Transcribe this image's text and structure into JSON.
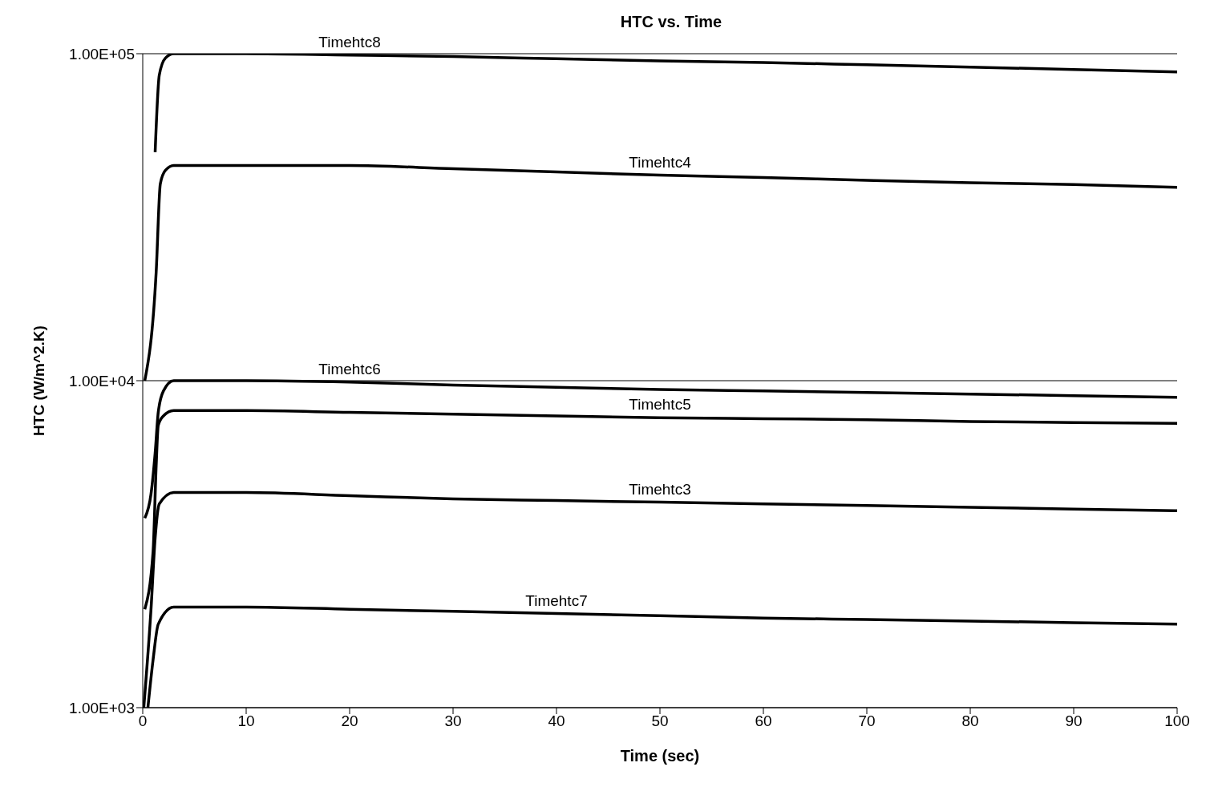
{
  "chart_data": {
    "type": "line",
    "title": "HTC vs. Time",
    "xlabel": "Time (sec)",
    "ylabel": "HTC (W/m^2.K)",
    "log": "y",
    "grid": "y",
    "marker": "none",
    "line_style": "solid",
    "xlim": [
      0,
      100
    ],
    "xticks": [
      0,
      10,
      20,
      30,
      40,
      50,
      60,
      70,
      80,
      90,
      100
    ],
    "ylim": [
      1000,
      100000
    ],
    "yticks": [
      {
        "value": 1000,
        "label": "1.00E+03"
      },
      {
        "value": 10000,
        "label": "1.00E+04"
      },
      {
        "value": 100000,
        "label": "1.00E+05"
      }
    ],
    "series": [
      {
        "name": "Timehtc8",
        "color": "#000000",
        "x": [
          1.2,
          1.6,
          2.2,
          3,
          10,
          20,
          30,
          40,
          50,
          60,
          70,
          80,
          90,
          100
        ],
        "values": [
          50000,
          86000,
          97000,
          100000,
          100000,
          99000,
          98000,
          96500,
          95000,
          94000,
          92500,
          91000,
          89500,
          88000
        ]
      },
      {
        "name": "Timehtc4",
        "color": "#000000",
        "x": [
          0.2,
          1.3,
          1.7,
          2.2,
          3,
          10,
          20,
          30,
          40,
          50,
          60,
          70,
          80,
          90,
          100
        ],
        "values": [
          10000,
          21500,
          40000,
          44000,
          45500,
          45500,
          45500,
          44500,
          43500,
          42500,
          41800,
          41000,
          40300,
          39800,
          39000
        ]
      },
      {
        "name": "Timehtc6",
        "color": "#000000",
        "x": [
          0.2,
          0.8,
          1.2,
          1.5,
          2,
          3,
          10,
          20,
          30,
          40,
          50,
          60,
          70,
          80,
          90,
          100
        ],
        "values": [
          3800,
          4500,
          6000,
          8000,
          9300,
          10000,
          10000,
          9900,
          9700,
          9550,
          9400,
          9300,
          9200,
          9100,
          9000,
          8900
        ]
      },
      {
        "name": "Timehtc5",
        "color": "#000000",
        "x": [
          0.2,
          1.0,
          1.3,
          1.5,
          2,
          3,
          10,
          20,
          30,
          40,
          50,
          60,
          70,
          80,
          90,
          100
        ],
        "values": [
          2000,
          3000,
          5500,
          7300,
          7800,
          8100,
          8100,
          8000,
          7900,
          7800,
          7700,
          7650,
          7600,
          7500,
          7450,
          7400
        ]
      },
      {
        "name": "Timehtc3",
        "color": "#000000",
        "x": [
          0.1,
          0.8,
          1.2,
          1.6,
          3,
          10,
          20,
          30,
          40,
          50,
          60,
          70,
          80,
          90,
          100
        ],
        "values": [
          1000,
          2000,
          3300,
          4200,
          4550,
          4550,
          4450,
          4350,
          4300,
          4250,
          4200,
          4150,
          4100,
          4050,
          4000
        ]
      },
      {
        "name": "Timehtc7",
        "color": "#000000",
        "x": [
          0.5,
          1.0,
          1.5,
          3,
          10,
          20,
          30,
          40,
          50,
          60,
          70,
          80,
          90,
          100
        ],
        "values": [
          1000,
          1400,
          1800,
          2030,
          2030,
          2000,
          1970,
          1940,
          1910,
          1880,
          1860,
          1840,
          1820,
          1800
        ]
      }
    ]
  }
}
